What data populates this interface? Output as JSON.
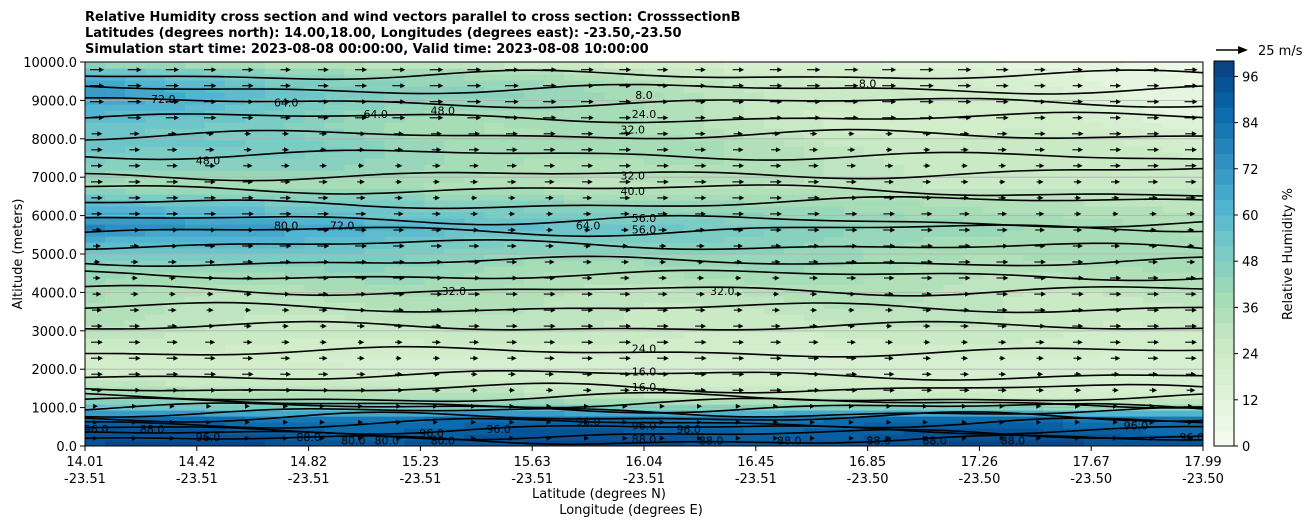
{
  "chart_data": {
    "type": "heatmap",
    "title": [
      "Relative Humidity cross section and wind vectors parallel to cross section: CrosssectionB",
      "Latitudes (degrees north): 14.00,18.00, Longitudes (degrees east): -23.50,-23.50",
      "Simulation start time: 2023-08-08 00:00:00, Valid time: 2023-08-08 10:00:00"
    ],
    "ylabel": "Altitude (meters)",
    "xlabel_lat": "Latitude (degrees N)",
    "xlabel_lon": "Longitude (degrees E)",
    "ylim": [
      0,
      10000
    ],
    "y_ticks": [
      "0.0",
      "1000.0",
      "2000.0",
      "3000.0",
      "4000.0",
      "5000.0",
      "6000.0",
      "7000.0",
      "8000.0",
      "9000.0",
      "10000.0"
    ],
    "x_ticks": [
      {
        "lat": "14.01",
        "lon": "-23.51"
      },
      {
        "lat": "14.42",
        "lon": "-23.51"
      },
      {
        "lat": "14.82",
        "lon": "-23.51"
      },
      {
        "lat": "15.23",
        "lon": "-23.51"
      },
      {
        "lat": "15.63",
        "lon": "-23.51"
      },
      {
        "lat": "16.04",
        "lon": "-23.51"
      },
      {
        "lat": "16.45",
        "lon": "-23.51"
      },
      {
        "lat": "16.85",
        "lon": "-23.50"
      },
      {
        "lat": "17.26",
        "lon": "-23.50"
      },
      {
        "lat": "17.67",
        "lon": "-23.50"
      },
      {
        "lat": "17.99",
        "lon": "-23.50"
      }
    ],
    "grid_y": true,
    "colorbar": {
      "label": "Relative Humidity %",
      "ticks": [
        "0",
        "12",
        "24",
        "36",
        "48",
        "60",
        "72",
        "84",
        "96"
      ],
      "range": [
        0,
        100
      ],
      "colormap": "GnBu"
    },
    "quiver_key": "25 m/s",
    "humidity_profile": {
      "altitude": [
        0,
        300,
        700,
        1000,
        1300,
        1700,
        2200,
        2600,
        3200,
        4000,
        4600,
        5200,
        5700,
        6300,
        6800,
        7300,
        7800,
        8300,
        8700,
        9200,
        9700,
        10000
      ],
      "west": [
        96,
        92,
        85,
        55,
        40,
        28,
        20,
        24,
        30,
        36,
        45,
        60,
        78,
        60,
        40,
        50,
        58,
        55,
        62,
        72,
        60,
        40
      ],
      "east": [
        96,
        92,
        85,
        45,
        22,
        17,
        17,
        22,
        26,
        30,
        34,
        36,
        34,
        30,
        26,
        24,
        20,
        16,
        12,
        10,
        8,
        6
      ]
    },
    "contour_labels": [
      {
        "text": "8.0",
        "x": 0.5,
        "y": 9140
      },
      {
        "text": "8.0",
        "x": 0.7,
        "y": 9440
      },
      {
        "text": "24.0",
        "x": 0.5,
        "y": 8640
      },
      {
        "text": "32.0",
        "x": 0.49,
        "y": 8240
      },
      {
        "text": "48.0",
        "x": 0.32,
        "y": 8740
      },
      {
        "text": "72.0",
        "x": 0.07,
        "y": 9040
      },
      {
        "text": "64.0",
        "x": 0.18,
        "y": 8940
      },
      {
        "text": "64.0",
        "x": 0.26,
        "y": 8640
      },
      {
        "text": "48.0",
        "x": 0.11,
        "y": 7440
      },
      {
        "text": "32.0",
        "x": 0.49,
        "y": 7040
      },
      {
        "text": "40.0",
        "x": 0.49,
        "y": 6640
      },
      {
        "text": "56.0",
        "x": 0.5,
        "y": 5940
      },
      {
        "text": "56.0",
        "x": 0.5,
        "y": 5640
      },
      {
        "text": "64.0",
        "x": 0.45,
        "y": 5740
      },
      {
        "text": "72.0",
        "x": 0.23,
        "y": 5740
      },
      {
        "text": "80.0",
        "x": 0.18,
        "y": 5740
      },
      {
        "text": "32.0",
        "x": 0.33,
        "y": 4040
      },
      {
        "text": "32.0",
        "x": 0.57,
        "y": 4040
      },
      {
        "text": "24.0",
        "x": 0.5,
        "y": 2540
      },
      {
        "text": "16.0",
        "x": 0.5,
        "y": 1940
      },
      {
        "text": "16.0",
        "x": 0.5,
        "y": 1540
      },
      {
        "text": "88.0",
        "x": 0.5,
        "y": 180
      },
      {
        "text": "96.0",
        "x": 0.5,
        "y": 540
      },
      {
        "text": "96.0",
        "x": 0.01,
        "y": 440
      },
      {
        "text": "88.0",
        "x": 0.06,
        "y": 440
      },
      {
        "text": "96.0",
        "x": 0.11,
        "y": 240
      },
      {
        "text": "88.0",
        "x": 0.2,
        "y": 240
      },
      {
        "text": "80.0",
        "x": 0.24,
        "y": 140
      },
      {
        "text": "80.0",
        "x": 0.27,
        "y": 140
      },
      {
        "text": "96.0",
        "x": 0.31,
        "y": 340
      },
      {
        "text": "80.0",
        "x": 0.32,
        "y": 140
      },
      {
        "text": "96.0",
        "x": 0.37,
        "y": 440
      },
      {
        "text": "96.0",
        "x": 0.45,
        "y": 640
      },
      {
        "text": "96.0",
        "x": 0.54,
        "y": 440
      },
      {
        "text": "88.0",
        "x": 0.56,
        "y": 140
      },
      {
        "text": "88.0",
        "x": 0.63,
        "y": 140
      },
      {
        "text": "88.0",
        "x": 0.71,
        "y": 140
      },
      {
        "text": "88.0",
        "x": 0.76,
        "y": 140
      },
      {
        "text": "88.0",
        "x": 0.83,
        "y": 140
      },
      {
        "text": "96.0",
        "x": 0.94,
        "y": 540
      },
      {
        "text": "96.0",
        "x": 0.99,
        "y": 240
      }
    ],
    "wind_field": {
      "columns": 30,
      "rows": 24,
      "direction": "eastward"
    }
  }
}
